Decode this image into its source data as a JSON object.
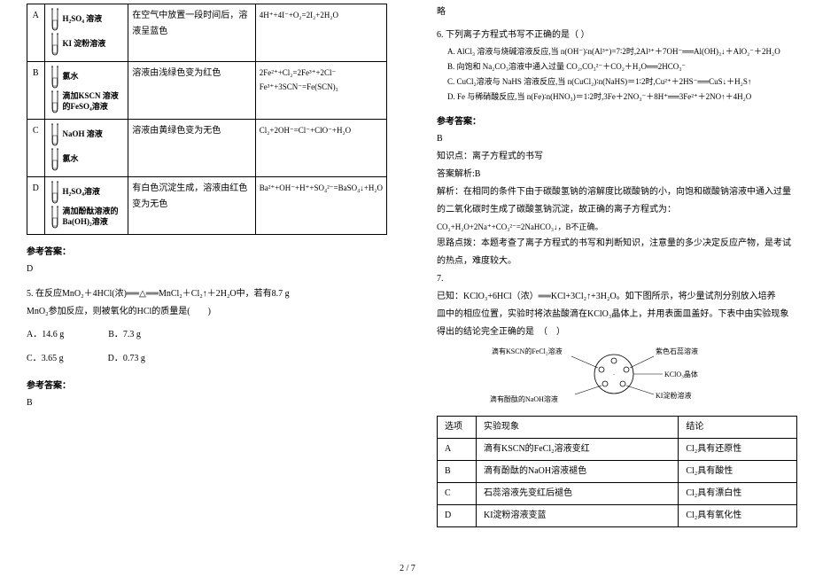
{
  "footer": "2 / 7",
  "left": {
    "table": {
      "rows": [
        {
          "letter": "A",
          "tubes": [
            {
              "t": "H₂SO₄ 溶液"
            },
            {
              "t": "KI 淀粉溶液"
            }
          ],
          "phenomenon": "在空气中放置一段时间后，溶液呈蓝色",
          "eq": "4H⁺+4I⁻+O₂=2I₂+2H₂O"
        },
        {
          "letter": "B",
          "tubes": [
            {
              "t": "氯水"
            },
            {
              "t": "滴加KSCN 溶液的FeSO₄溶液"
            }
          ],
          "phenomenon": "溶液由浅绿色变为红色",
          "eq": "2Fe²⁺+Cl₂=2Fe³⁺+2Cl⁻\nFe³⁺+3SCN⁻=Fe(SCN)₃"
        },
        {
          "letter": "C",
          "tubes": [
            {
              "t": "NaOH 溶液"
            },
            {
              "t": "氯水"
            }
          ],
          "phenomenon": "溶液由黄绿色变为无色",
          "eq": "Cl₂+2OH⁻=Cl⁻+ClO⁻+H₂O"
        },
        {
          "letter": "D",
          "tubes": [
            {
              "t": "H₂SO₄溶液"
            },
            {
              "t": "滴加酚酞溶液的Ba(OH)₂溶液"
            }
          ],
          "phenomenon": "有白色沉淀生成，溶液由红色变为无色",
          "eq": "Ba²⁺+OH⁻+H⁺+SO₄²⁻=BaSO₄↓+H₂O"
        }
      ]
    },
    "ansLabel1": "参考答案：",
    "ans1": "D",
    "q5_line1": "5. 在反应MnO₂＋4HCl(浓)══△══MnCl₂＋Cl₂↑＋2H₂O中，若有8.7 g",
    "q5_line2": "MnO₂参加反应，则被氧化的HCl的质量是(　　)",
    "q5_opts": [
      [
        "A．14.6 g",
        "B．7.3 g"
      ],
      [
        "C．3.65 g",
        "D．0.73 g"
      ]
    ],
    "ansLabel2": "参考答案：",
    "ans2": "B"
  },
  "right": {
    "lue": "略",
    "q6": "6. 下列离子方程式书写不正确的是（  ）",
    "q6A": "A. AlCl₃ 溶液与烧碱溶液反应,当 n(OH⁻)∶n(Al³⁺)=7∶2时,2Al³⁺＋7OH⁻══Al(OH)₃↓＋AlO₂⁻＋2H₂O",
    "q6B": "B. 向饱和 Na₂CO₃溶液中通入过量 CO₂,CO₃²⁻＋CO₂＋H₂O══2HCO₃⁻",
    "q6C": "C. CuCl₂溶液与 NaHS 溶液反应,当 n(CuCl₂)∶n(NaHS)＝1∶2时,Cu²⁺＋2HS⁻══CuS↓＋H₂S↑",
    "q6D": "D. Fe 与稀硝酸反应,当 n(Fe)∶n(HNO₃)＝1∶2时,3Fe＋2NO₃⁻＋8H⁺══3Fe²⁺＋2NO↑＋4H₂O",
    "ansLabel": "参考答案：",
    "ans": "B",
    "kp": "知识点：离子方程式的书写",
    "jiexiLabel": "答案解析:B",
    "jiexi": "解析：在相同的条件下由于碳酸氢钠的溶解度比碳酸钠的小，向饱和碳酸钠溶液中通入过量的二氧化碳时生成了碳酸氢钠沉淀，故正确的离子方程式为：",
    "jiexiEq": "CO₂+H₂O+2Na⁺+CO₃²⁻=2NaHCO₃↓，B不正确。",
    "silu": "思路点拨：本题考查了离子方程式的书写和判断知识，注意量的多少决定反应产物，是考试的热点，难度较大。",
    "q7": "7.",
    "q7_body1": "已知：KClO₃+6HCl（浓）══KCl+3Cl₂↑+3H₂O。如下图所示，将少量试剂分别放入培养",
    "q7_body2": "皿中的相应位置，实验时将浓盐酸滴在KClO₃晶体上，并用表面皿盖好。下表中由实验现象",
    "q7_body3": "得出的结论完全正确的是　（　）",
    "diagram_labels": {
      "top_left": "滴有KSCN的FeCl₂溶液",
      "top_right": "紫色石蕊溶液",
      "mid_right": "KClO₃晶体",
      "bot_left": "滴有酚酞的NaOH溶液",
      "bot_right": "KI淀粉溶液"
    },
    "opt_table": {
      "headers": [
        "选项",
        "实验现象",
        "结论"
      ],
      "rows": [
        [
          "A",
          "滴有KSCN的FeCl₂溶液变红",
          "Cl₂具有还原性"
        ],
        [
          "B",
          "滴有酚酞的NaOH溶液褪色",
          "Cl₂具有酸性"
        ],
        [
          "C",
          "石蕊溶液先变红后褪色",
          "Cl₂具有漂白性"
        ],
        [
          "D",
          "KI淀粉溶液变蓝",
          "Cl₂具有氧化性"
        ]
      ]
    }
  }
}
